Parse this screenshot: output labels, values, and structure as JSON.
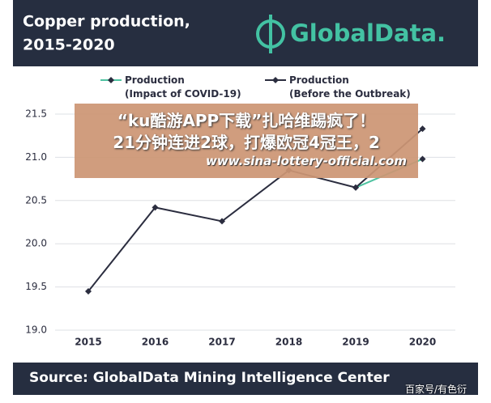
{
  "chart_data": {
    "type": "line",
    "title": [
      "Copper production,",
      "2015-2020"
    ],
    "categories": [
      "2015",
      "2016",
      "2017",
      "2018",
      "2019",
      "2020"
    ],
    "series": [
      {
        "name": "Production\n(Impact of COVID-19)",
        "color": "#4fc3a1",
        "values": [
          null,
          null,
          null,
          null,
          20.65,
          20.98
        ]
      },
      {
        "name": "Production\n(Before the Outbreak)",
        "color": "#2b2d3f",
        "values": [
          19.45,
          20.42,
          20.26,
          20.85,
          20.65,
          21.33
        ]
      }
    ],
    "ylim": [
      19.0,
      21.5
    ],
    "yticks": [
      {
        "value": 19,
        "label": "19.0"
      },
      19.5,
      {
        "value": 20,
        "label": "20.0"
      },
      20.5,
      {
        "value": 21,
        "label": "21.0"
      },
      21.5
    ],
    "grid": true
  },
  "header": {
    "logo": "GlobalData."
  },
  "footer": {
    "source": "Source:  GlobalData Mining Intelligence Center"
  },
  "overlay": {
    "lines": [
      "“ku酷游APP下载”扎哈维踢疯了！",
      "21分钟连进2球，打爆欧冠4冠王，2"
    ],
    "url": "www.sina-lottery-official.com"
  },
  "watermark": "百家号/有色衍"
}
